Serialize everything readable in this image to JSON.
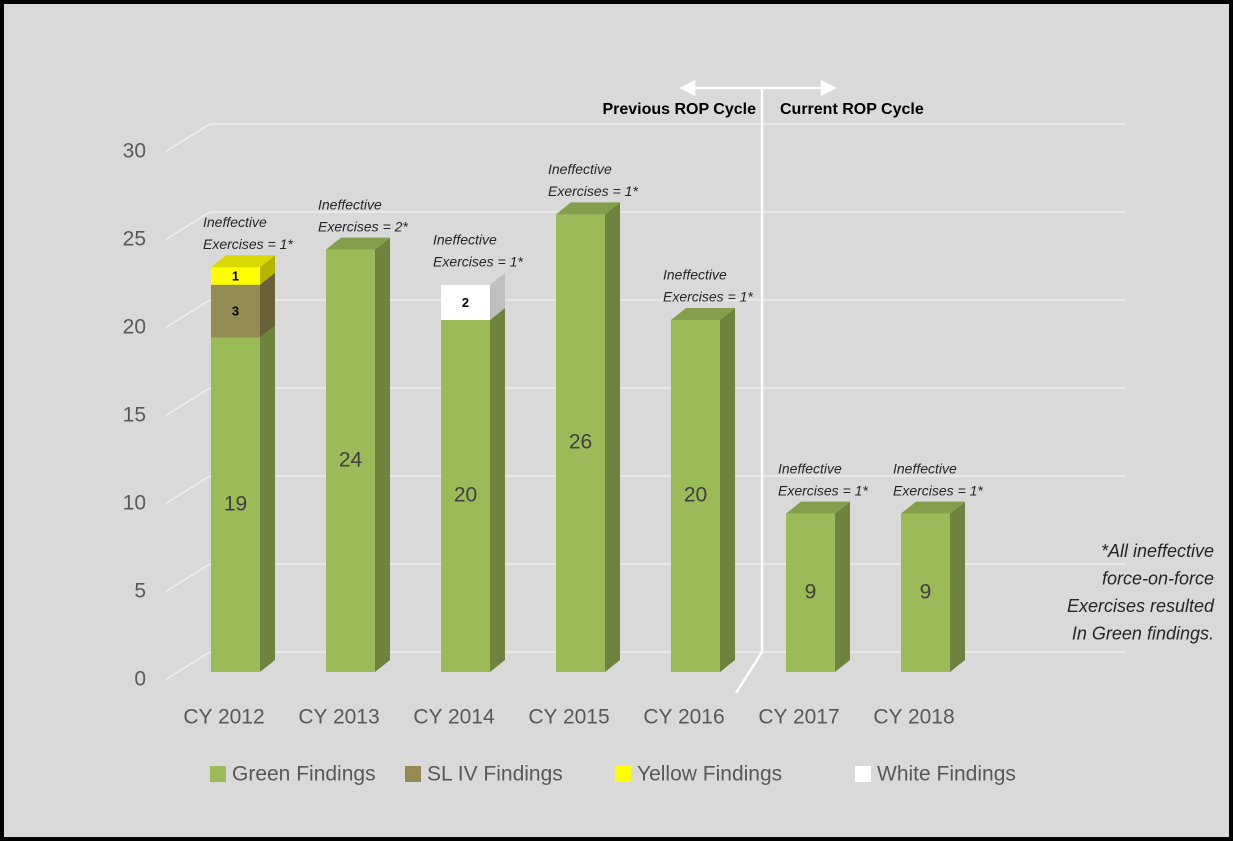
{
  "chart_data": {
    "type": "bar3d_stacked",
    "categories": [
      "CY 2012",
      "CY 2013",
      "CY 2014",
      "CY 2015",
      "CY 2016",
      "CY 2017",
      "CY 2018"
    ],
    "series": [
      {
        "name": "Green Findings",
        "color": "#9bbb59",
        "values": [
          19,
          24,
          20,
          26,
          20,
          9,
          9
        ]
      },
      {
        "name": "SL IV Findings",
        "color": "#948a54",
        "values": [
          3,
          null,
          null,
          null,
          null,
          null,
          null
        ]
      },
      {
        "name": "Yellow Findings",
        "color": "#ffff00",
        "values": [
          1,
          null,
          null,
          null,
          null,
          null,
          null
        ]
      },
      {
        "name": "White Findings",
        "color": "#ffffff",
        "values": [
          null,
          null,
          2,
          null,
          null,
          null,
          null
        ]
      }
    ],
    "ylim": [
      0,
      30
    ],
    "yticks": [
      0,
      5,
      10,
      15,
      20,
      25,
      30
    ],
    "grid": true,
    "bar_notes": [
      [
        "Ineffective",
        "Exercises = 1*"
      ],
      [
        "Ineffective",
        "Exercises = 2*"
      ],
      [
        "Ineffective",
        "Exercises = 1*"
      ],
      [
        "Ineffective",
        "Exercises = 1*"
      ],
      [
        "Ineffective",
        "Exercises = 1*"
      ],
      [
        "Ineffective",
        "Exercises = 1*"
      ],
      [
        "Ineffective",
        "Exercises = 1*"
      ]
    ],
    "cycle_labels": [
      "Previous ROP Cycle",
      "Current ROP Cycle"
    ],
    "footnote": [
      "*All ineffective",
      "force-on-force",
      "Exercises resulted",
      "In Green findings."
    ],
    "legend": "bottom"
  }
}
